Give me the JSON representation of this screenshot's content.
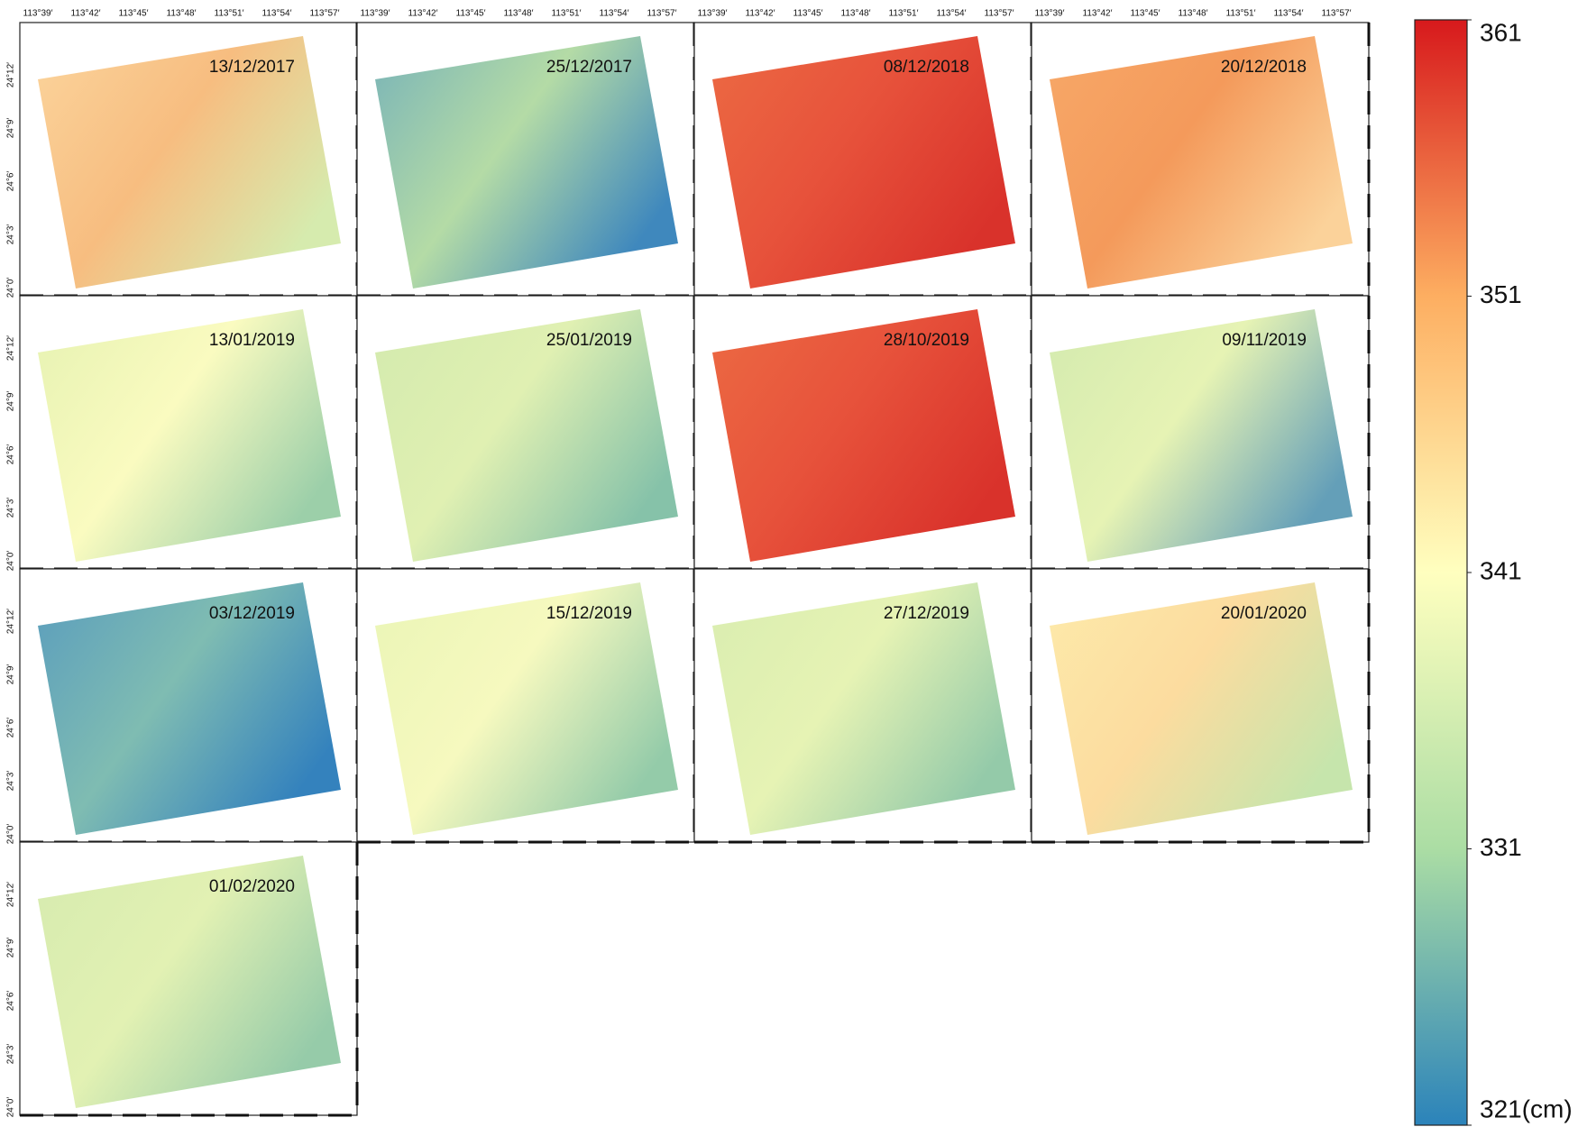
{
  "map": {
    "longitude_ticks": [
      "113°39′",
      "113°42′",
      "113°45′",
      "113°48′",
      "113°51′",
      "113°54′",
      "113°57′"
    ],
    "latitude_ticks": [
      "24°12′",
      "24°9′",
      "24°6′",
      "24°3′",
      "24°0′"
    ],
    "panels": [
      {
        "date": "13/12/2017",
        "colors": [
          "#fbd49c",
          "#f7bd80",
          "#d6ebae"
        ]
      },
      {
        "date": "25/12/2017",
        "colors": [
          "#78b3b8",
          "#b4dba6",
          "#3f88bd"
        ]
      },
      {
        "date": "08/12/2018",
        "colors": [
          "#ec6a43",
          "#e7523b",
          "#d9322b"
        ]
      },
      {
        "date": "20/12/2018",
        "colors": [
          "#f7a868",
          "#f49a5b",
          "#fbd29a"
        ]
      },
      {
        "date": "13/01/2019",
        "colors": [
          "#e6f2b2",
          "#fafbc0",
          "#9ccfa9"
        ]
      },
      {
        "date": "25/01/2019",
        "colors": [
          "#d3eaae",
          "#e0f0b2",
          "#86c2a9"
        ]
      },
      {
        "date": "28/10/2019",
        "colors": [
          "#ec6a43",
          "#e7523b",
          "#d9322b"
        ]
      },
      {
        "date": "09/11/2019",
        "colors": [
          "#d3eaaf",
          "#e6f3b4",
          "#649fb8"
        ]
      },
      {
        "date": "03/12/2019",
        "colors": [
          "#5a9dbd",
          "#7fbcb2",
          "#3482bd"
        ]
      },
      {
        "date": "15/12/2019",
        "colors": [
          "#eaf5b6",
          "#f6f9bf",
          "#94cba9"
        ]
      },
      {
        "date": "27/12/2019",
        "colors": [
          "#d9edb0",
          "#e6f3b4",
          "#94caa9"
        ]
      },
      {
        "date": "20/01/2020",
        "colors": [
          "#fdeaaa",
          "#fcdc9f",
          "#c6e5ac"
        ]
      },
      {
        "date": "01/02/2020",
        "colors": [
          "#d6ebaf",
          "#e2f1b3",
          "#96cba9"
        ]
      }
    ]
  },
  "colorbar": {
    "range": [
      321,
      361
    ],
    "colors": [
      "#d7191c",
      "#fdae61",
      "#ffffbf",
      "#abdda4",
      "#2b83ba"
    ],
    "ticks": [
      {
        "value": 361,
        "label": "361"
      },
      {
        "value": 351,
        "label": "351"
      },
      {
        "value": 341,
        "label": "341"
      },
      {
        "value": 331,
        "label": "331"
      },
      {
        "value": 321,
        "label": "321(cm)"
      }
    ]
  }
}
